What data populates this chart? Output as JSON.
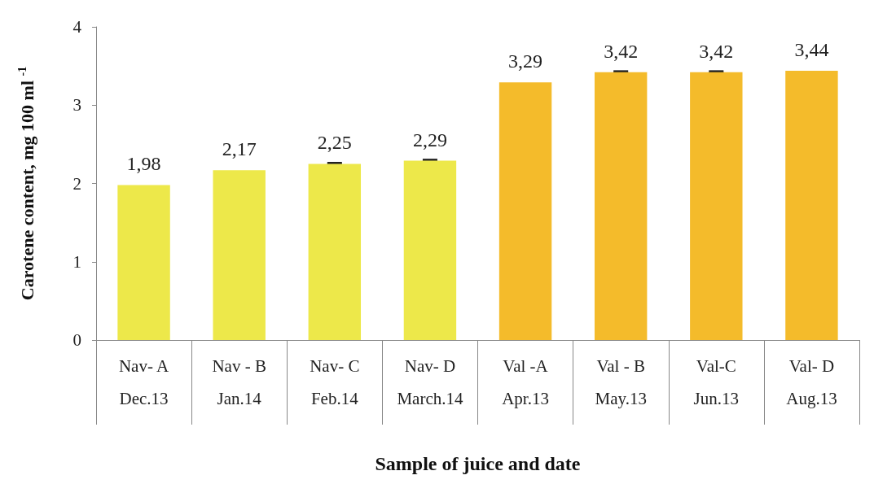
{
  "chart_data": {
    "type": "bar",
    "xlabel": "Sample of juice and date",
    "ylabel": "Carotene content, mg 100 ml $^{-1}$",
    "categories": [
      "Nav- A\nDec.13",
      "Nav - B\nJan.14",
      "Nav- C\nFeb.14",
      "Nav- D\nMarch.14",
      "Val -A\nApr.13",
      "Val - B\nMay.13",
      "Val-C\nJun.13",
      "Val- D\nAug.13"
    ],
    "values": [
      1.98,
      2.17,
      2.25,
      2.29,
      3.29,
      3.42,
      3.42,
      3.44
    ],
    "colors": [
      "#ede84a",
      "#ede84a",
      "#ede84a",
      "#ede84a",
      "#f4bb2b",
      "#f4bb2b",
      "#f4bb2b",
      "#f4bb2b"
    ],
    "errors": [
      null,
      null,
      0.01,
      0.01,
      null,
      0.01,
      0.01,
      null
    ],
    "value_labels": [
      "1,98",
      "2,17",
      "2,25",
      "2,29",
      "3,29",
      "3,42",
      "3,42",
      "3,44"
    ],
    "ylim": [
      0,
      4
    ],
    "yticks": [
      0,
      1,
      2,
      3,
      4
    ],
    "grid": false
  }
}
